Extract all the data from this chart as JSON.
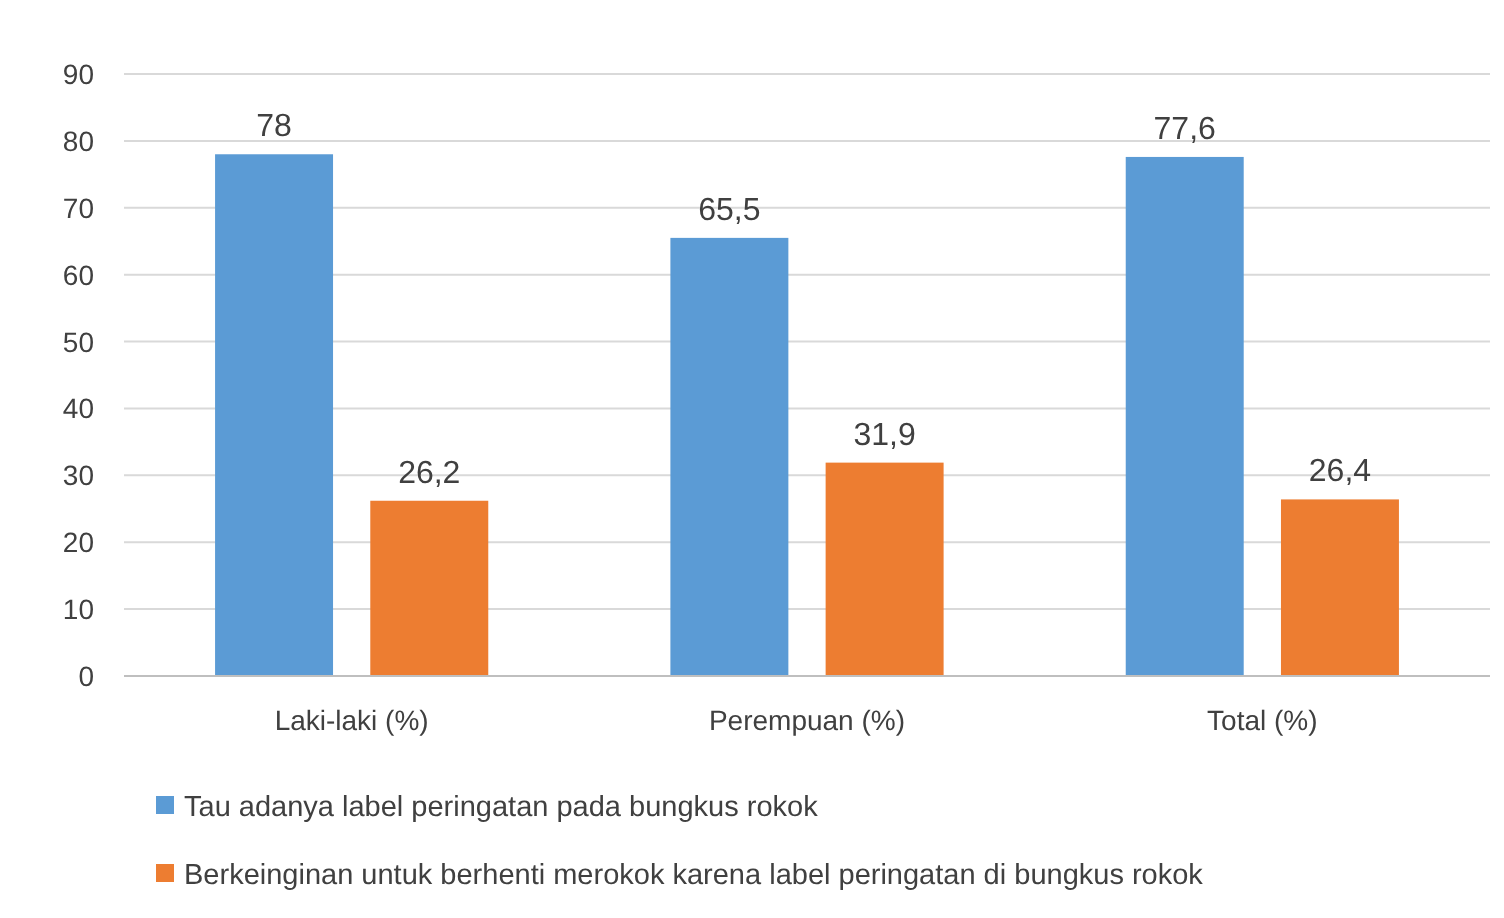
{
  "chart_data": {
    "type": "bar",
    "categories": [
      "Laki-laki (%)",
      "Perempuan (%)",
      "Total (%)"
    ],
    "series": [
      {
        "name": "Tau adanya label peringatan pada bungkus rokok",
        "color": "#5b9bd5",
        "values": [
          78,
          65.5,
          77.6
        ],
        "value_labels": [
          "78",
          "65,5",
          "77,6"
        ]
      },
      {
        "name": "Berkeinginan untuk berhenti merokok karena label peringatan di bungkus rokok",
        "color": "#ed7d31",
        "values": [
          26.2,
          31.9,
          26.4
        ],
        "value_labels": [
          "26,2",
          "31,9",
          "26,4"
        ]
      }
    ],
    "ylim": [
      0,
      90
    ],
    "yticks": [
      0,
      10,
      20,
      30,
      40,
      50,
      60,
      70,
      80,
      90
    ],
    "grid": "y",
    "legend": "bottom"
  }
}
